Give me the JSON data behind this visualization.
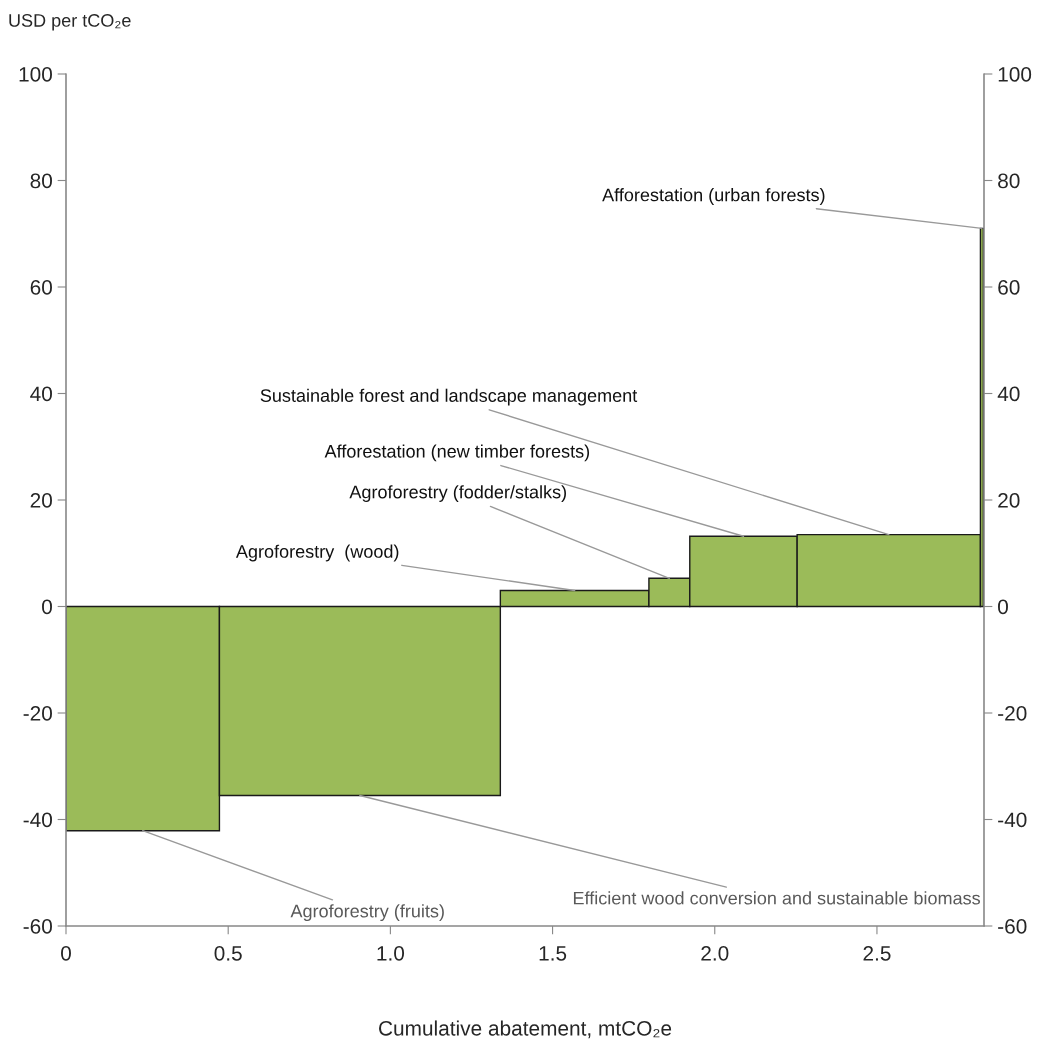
{
  "chart_data": {
    "type": "bar",
    "xlabel": "Cumulative abatement, mtCO₂e",
    "ylabel": "USD per tCO₂e",
    "x": [
      0.2365,
      0.906,
      1.568,
      1.86,
      2.0885,
      2.5365,
      2.8235
    ],
    "series": [
      {
        "color": "#9bbb59",
        "values": [
          -42.1,
          -35.5,
          3.0,
          5.3,
          13.2,
          13.5,
          71
        ]
      }
    ],
    "xlim": [
      0,
      2.83
    ],
    "xticks": [
      0,
      0.5,
      {
        "value": 1.0,
        "label": "1.0"
      },
      1.5,
      {
        "value": 2.0,
        "label": "2.0"
      },
      2.5
    ],
    "ylim": [
      -60,
      100
    ],
    "yticks": [
      -60,
      -40,
      -20,
      0,
      20,
      40,
      60,
      80,
      100
    ],
    "y2lim": [
      -60,
      100
    ],
    "y2ticks": [
      -60,
      -40,
      -20,
      0,
      20,
      40,
      60,
      80,
      100
    ],
    "annotations": [
      {
        "text": "Agroforestry (fruits)",
        "x": 0.2365,
        "y": -42.1
      },
      {
        "text": "Efficient wood conversion and sustainable biomass",
        "x": 0.906,
        "y": -35.5
      },
      {
        "text": "Agroforestry  (wood)",
        "x": 1.568,
        "y": 3.0
      },
      {
        "text": "Agroforestry (fodder/stalks)",
        "x": 1.86,
        "y": 5.3
      },
      {
        "text": "Afforestation (new timber forests)",
        "x": 2.0885,
        "y": 13.2
      },
      {
        "text": "Sustainable forest and landscape management",
        "x": 2.5365,
        "y": 13.5
      },
      {
        "text": "Afforestation (urban forests)",
        "x": 2.8235,
        "y": 71
      }
    ]
  }
}
